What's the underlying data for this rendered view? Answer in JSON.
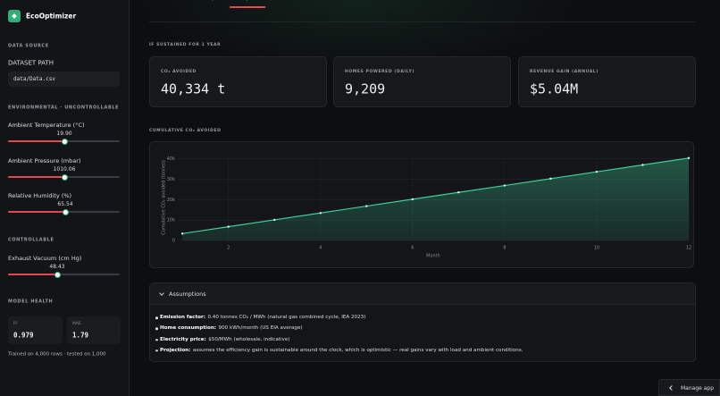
{
  "app": {
    "name": "EcoOptimizer"
  },
  "sidebar": {
    "data_source": {
      "heading": "DATA SOURCE",
      "field_label": "DATASET PATH",
      "field_value": "data/Data.csv"
    },
    "environmental": {
      "heading": "ENVIRONMENTAL · UNCONTROLLABLE",
      "sliders": [
        {
          "label": "Ambient Temperature (°C)",
          "value": "19.90"
        },
        {
          "label": "Ambient Pressure (mbar)",
          "value": "1010.06"
        },
        {
          "label": "Relative Humidity (%)",
          "value": "65.54"
        }
      ]
    },
    "controllable": {
      "heading": "CONTROLLABLE",
      "sliders": [
        {
          "label": "Exhaust Vacuum (cm Hg)",
          "value": "48.43"
        }
      ]
    },
    "model_health": {
      "heading": "MODEL HEALTH",
      "metrics": [
        {
          "label": "R²",
          "value": "0.979"
        },
        {
          "label": "MAE",
          "value": "1.79"
        }
      ],
      "note": "Trained on 4,000 rows · tested on 1,000"
    }
  },
  "tabs": [
    "Overview",
    "Analysis",
    "Impact"
  ],
  "summary": {
    "heading": "IF SUSTAINED FOR 1 YEAR",
    "metrics": [
      {
        "label": "CO₂ AVOIDED",
        "value": "40,334 t"
      },
      {
        "label": "HOMES POWERED (DAILY)",
        "value": "9,209"
      },
      {
        "label": "REVENUE GAIN (ANNUAL)",
        "value": "$5.04M"
      }
    ]
  },
  "chart_data": {
    "type": "area",
    "title": "CUMULATIVE CO₂ AVOIDED",
    "x_label": "Month",
    "y_label": "Cumulative CO₂ avoided (tonnes)",
    "x": [
      1,
      2,
      3,
      4,
      5,
      6,
      7,
      8,
      9,
      10,
      11,
      12
    ],
    "values": [
      3361,
      6722,
      10084,
      13445,
      16806,
      20167,
      23528,
      26889,
      30251,
      33612,
      36973,
      40334
    ],
    "color": "#3ecf9a",
    "markers": true,
    "grid": true,
    "xlim": [
      0.9,
      12
    ],
    "ylim": [
      0,
      42000
    ],
    "xticks": [
      2,
      4,
      6,
      8,
      10,
      12
    ],
    "yticks": [
      0,
      {
        "value": 10000,
        "label": "10k"
      },
      {
        "value": 20000,
        "label": "20k"
      },
      {
        "value": 30000,
        "label": "30k"
      },
      {
        "value": 40000,
        "label": "40k"
      }
    ]
  },
  "assumptions": {
    "title": "Assumptions",
    "items": [
      {
        "label": "Emission factor:",
        "text": "0.40 tonnes CO₂ / MWh (natural gas combined cycle, IEA 2023)"
      },
      {
        "label": "Home consumption:",
        "text": "900 kWh/month (US EIA average)"
      },
      {
        "label": "Electricity price:",
        "text": "$50/MWh (wholesale, indicative)"
      },
      {
        "label": "Projection:",
        "text": "assumes the efficiency gain is sustainable around the clock, which is optimistic — real gains vary with load and ambient conditions."
      }
    ]
  },
  "footer": {
    "button": "Manage app"
  }
}
